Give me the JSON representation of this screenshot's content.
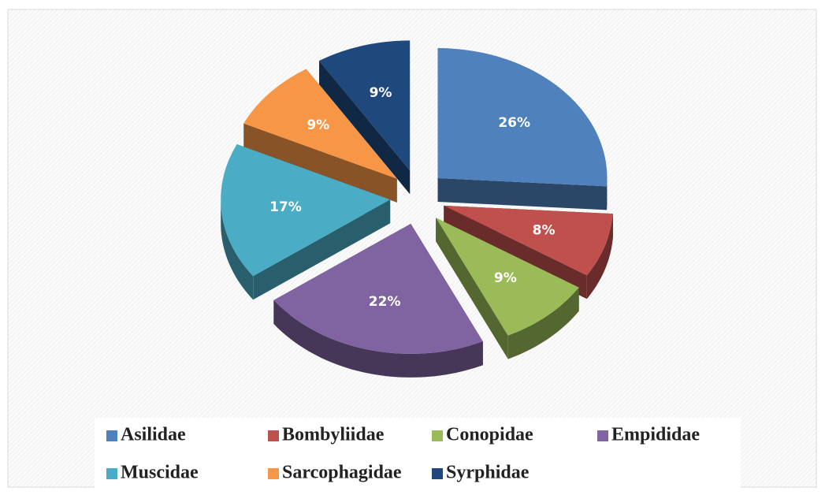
{
  "chart_data": {
    "type": "pie",
    "categories": [
      "Asilidae",
      "Bombyliidae",
      "Conopidae",
      "Empididae",
      "Muscidae",
      "Sarcophagidae",
      "Syrphidae"
    ],
    "values": [
      26,
      8,
      9,
      22,
      17,
      9,
      9
    ],
    "value_labels": [
      "26%",
      "8%",
      "9%",
      "22%",
      "17%",
      "9%",
      "9%"
    ],
    "colors": [
      "#4f81bd",
      "#c0504d",
      "#9bbb59",
      "#8064a2",
      "#4bacc6",
      "#f79646",
      "#1f497d"
    ],
    "legend": "bottom"
  }
}
